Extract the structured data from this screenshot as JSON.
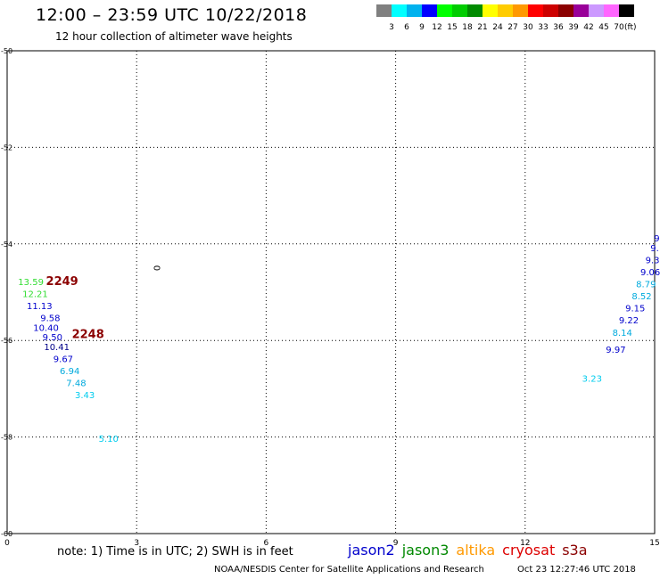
{
  "header": {
    "title": "12:00 – 23:59 UTC 10/22/2018",
    "subtitle": "12 hour collection of altimeter wave heights"
  },
  "colorbar": {
    "colors": [
      "#808080",
      "#00ffff",
      "#00b2ee",
      "#0000ff",
      "#00ff00",
      "#00cd00",
      "#008b00",
      "#ffff00",
      "#ffcc00",
      "#ff9900",
      "#ff0000",
      "#cd0000",
      "#8b0000",
      "#990099",
      "#cc99ff",
      "#ff66ff",
      "#000000"
    ],
    "labels": [
      "3",
      "6",
      "9",
      "12",
      "15",
      "18",
      "21",
      "24",
      "27",
      "30",
      "33",
      "36",
      "39",
      "42",
      "45",
      "70"
    ],
    "unit": "(ft)"
  },
  "axes": {
    "x_ticks": [
      "0",
      "3",
      "6",
      "9",
      "12",
      "15"
    ],
    "y_ticks": [
      "-50",
      "-52",
      "-54",
      "-56",
      "-58",
      "-60"
    ]
  },
  "map_labels": [
    {
      "text": "13.59",
      "color": "#33dd33",
      "x": 0.55,
      "y": -54.85
    },
    {
      "text": "12.21",
      "color": "#33dd33",
      "x": 0.65,
      "y": -55.1
    },
    {
      "text": "11.13",
      "color": "#0000cc",
      "x": 0.75,
      "y": -55.35
    },
    {
      "text": "9.58",
      "color": "#0000cc",
      "x": 1.0,
      "y": -55.6
    },
    {
      "text": "10.40",
      "color": "#0000cc",
      "x": 0.9,
      "y": -55.8
    },
    {
      "text": "9.50",
      "color": "#0000cc",
      "x": 1.05,
      "y": -56.0
    },
    {
      "text": "10.41",
      "color": "#000088",
      "x": 1.15,
      "y": -56.2
    },
    {
      "text": "9.67",
      "color": "#0000cc",
      "x": 1.3,
      "y": -56.45
    },
    {
      "text": "6.94",
      "color": "#00aadd",
      "x": 1.45,
      "y": -56.7
    },
    {
      "text": "7.48",
      "color": "#00aadd",
      "x": 1.6,
      "y": -56.95
    },
    {
      "text": "3.43",
      "color": "#00ccee",
      "x": 1.8,
      "y": -57.2
    },
    {
      "text": "5.10",
      "color": "#00ccee",
      "x": 2.35,
      "y": -58.1
    },
    {
      "text": "9.97",
      "color": "#0000cc",
      "x": 14.1,
      "y": -56.25
    },
    {
      "text": "8.14",
      "color": "#00aadd",
      "x": 14.25,
      "y": -55.9
    },
    {
      "text": "9.22",
      "color": "#0000cc",
      "x": 14.4,
      "y": -55.65
    },
    {
      "text": "9.15",
      "color": "#0000cc",
      "x": 14.55,
      "y": -55.4
    },
    {
      "text": "8.52",
      "color": "#00aadd",
      "x": 14.7,
      "y": -55.15
    },
    {
      "text": "8.79",
      "color": "#00aadd",
      "x": 14.8,
      "y": -54.9
    },
    {
      "text": "9.06",
      "color": "#0000cc",
      "x": 14.9,
      "y": -54.65
    },
    {
      "text": "9.3",
      "color": "#0000cc",
      "x": 14.95,
      "y": -54.4
    },
    {
      "text": "9.",
      "color": "#0000cc",
      "x": 15.0,
      "y": -54.15
    },
    {
      "text": "9",
      "color": "#0000cc",
      "x": 15.05,
      "y": -53.95
    },
    {
      "text": "3.23",
      "color": "#00ccee",
      "x": 13.55,
      "y": -56.85
    }
  ],
  "time_labels": [
    {
      "text": "2249",
      "color": "#8b0000",
      "x": 0.9,
      "y": -54.85
    },
    {
      "text": "2248",
      "color": "#8b0000",
      "x": 1.5,
      "y": -55.95
    }
  ],
  "markers": [
    {
      "text": "0",
      "x": 3.4,
      "y": -54.5
    }
  ],
  "footer": {
    "note": "note: 1) Time is in UTC; 2) SWH is in feet",
    "satellites": [
      {
        "name": "jason2",
        "color": "#0000cc"
      },
      {
        "name": "jason3",
        "color": "#008800"
      },
      {
        "name": "altika",
        "color": "#ff9900"
      },
      {
        "name": "cryosat",
        "color": "#dd0000"
      },
      {
        "name": "s3a",
        "color": "#8b0000"
      }
    ],
    "agency": "NOAA/NESDIS Center for Satellite Applications and Research",
    "timestamp": "Oct 23 12:27:46 UTC 2018"
  }
}
